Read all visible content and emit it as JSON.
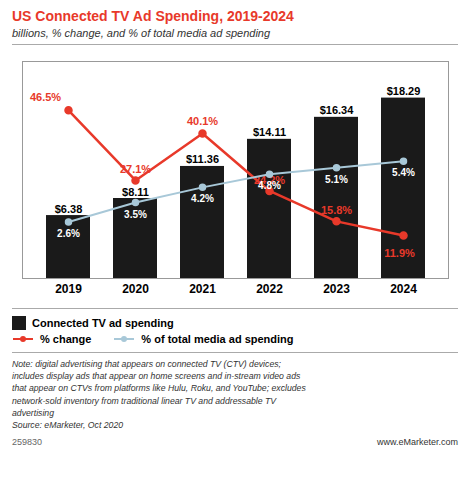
{
  "chart_data": {
    "type": "bar",
    "title": "US Connected TV Ad Spending, 2019-2024",
    "subtitle": "billions, % change, and % of total media ad spending",
    "categories": [
      "2019",
      "2020",
      "2021",
      "2022",
      "2023",
      "2024"
    ],
    "series": [
      {
        "name": "Connected TV ad spending",
        "type": "bar",
        "color": "#1a1a1a",
        "values": [
          6.38,
          8.11,
          11.36,
          14.11,
          16.34,
          18.29
        ],
        "value_labels": [
          "$6.38",
          "$8.11",
          "$11.36",
          "$14.11",
          "$16.34",
          "$18.29"
        ]
      },
      {
        "name": "% change",
        "type": "line",
        "marker": "circle",
        "color": "#e8392a",
        "axis": "y2",
        "values": [
          46.5,
          27.1,
          40.1,
          24.2,
          15.8,
          11.9
        ],
        "value_labels": [
          "46.5%",
          "27.1%",
          "40.1%",
          "24.2%",
          "15.8%",
          "11.9%"
        ]
      },
      {
        "name": "% of total media ad spending",
        "type": "line",
        "marker": "circle",
        "color": "#a8c8d8",
        "axis": "y3",
        "values": [
          2.6,
          3.5,
          4.2,
          4.8,
          5.1,
          5.4
        ],
        "value_labels": [
          "2.6%",
          "3.5%",
          "4.2%",
          "4.8%",
          "5.1%",
          "5.4%"
        ]
      }
    ],
    "ylim": [
      0,
      22
    ],
    "y2lim": [
      0,
      60
    ],
    "y3lim": [
      0,
      10
    ],
    "data_labels": true,
    "tick_labels": "x",
    "grid": false,
    "legend": "bottom",
    "annotations": [
      "Note: digital advertising that appears on connected TV (CTV) devices;\nincludes display ads that appear on home screens and in-stream video ads\nthat appear on CTVs from platforms like Hulu, Roku, and YouTube; excludes\nnetwork-sold inventory from traditional linear TV and addressable TV\nadvertising\nSource: eMarketer, Oct 2020",
      "259830",
      "www.eMarketer.com"
    ]
  }
}
